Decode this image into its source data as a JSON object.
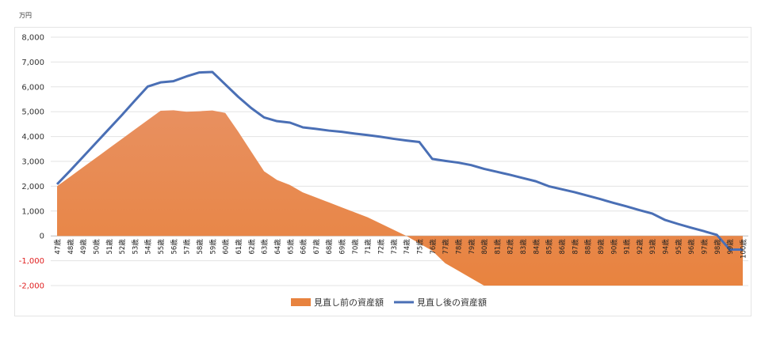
{
  "chart_data": {
    "type": "area+line",
    "unit_label": "万円",
    "ylim": [
      -2000,
      8000
    ],
    "yticks": [
      8000,
      7000,
      6000,
      5000,
      4000,
      3000,
      2000,
      1000,
      0,
      -1000,
      -2000
    ],
    "ytick_labels": [
      "8,000",
      "7,000",
      "6,000",
      "5,000",
      "4,000",
      "3,000",
      "2,000",
      "1,000",
      "0",
      "-1,000",
      "-2,000"
    ],
    "grid": true,
    "legend_position": "bottom",
    "categories": [
      "47歳",
      "48歳",
      "49歳",
      "50歳",
      "51歳",
      "52歳",
      "53歳",
      "54歳",
      "55歳",
      "56歳",
      "57歳",
      "58歳",
      "59歳",
      "60歳",
      "61歳",
      "62歳",
      "63歳",
      "64歳",
      "65歳",
      "66歳",
      "67歳",
      "68歳",
      "69歳",
      "70歳",
      "71歳",
      "72歳",
      "73歳",
      "74歳",
      "75歳",
      "76歳",
      "77歳",
      "78歳",
      "79歳",
      "80歳",
      "81歳",
      "82歳",
      "83歳",
      "84歳",
      "85歳",
      "86歳",
      "87歳",
      "88歳",
      "89歳",
      "90歳",
      "91歳",
      "92歳",
      "93歳",
      "94歳",
      "95歳",
      "96歳",
      "97歳",
      "98歳",
      "99歳",
      "100歳"
    ],
    "series": [
      {
        "name": "見直し前の資産額",
        "type": "area",
        "color": "#E8833F",
        "values": [
          2000,
          2380,
          2760,
          3140,
          3520,
          3900,
          4280,
          4660,
          5040,
          5060,
          5000,
          5020,
          5050,
          4950,
          4200,
          3400,
          2600,
          2250,
          2050,
          1750,
          1550,
          1350,
          1150,
          950,
          750,
          500,
          250,
          0,
          -300,
          -600,
          -1100,
          -1400,
          -1700,
          -2000,
          -2000,
          -2000,
          -2000,
          -2000,
          -2000,
          -2000,
          -2000,
          -2000,
          -2000,
          -2000,
          -2000,
          -2000,
          -2000,
          -2000,
          -2000,
          -2000,
          -2000,
          -2000,
          -2000,
          -2000
        ]
      },
      {
        "name": "見直し後の資産額",
        "type": "line",
        "color": "#4A6FB5",
        "values": [
          2080,
          2620,
          3180,
          3740,
          4300,
          4860,
          5440,
          6010,
          6180,
          6230,
          6420,
          6580,
          6600,
          6100,
          5600,
          5150,
          4770,
          4620,
          4560,
          4370,
          4310,
          4240,
          4190,
          4120,
          4060,
          3990,
          3910,
          3840,
          3780,
          3100,
          3020,
          2950,
          2850,
          2700,
          2580,
          2460,
          2330,
          2200,
          2000,
          1880,
          1760,
          1620,
          1480,
          1330,
          1190,
          1040,
          900,
          640,
          480,
          330,
          190,
          40,
          -550,
          -550
        ]
      }
    ]
  }
}
